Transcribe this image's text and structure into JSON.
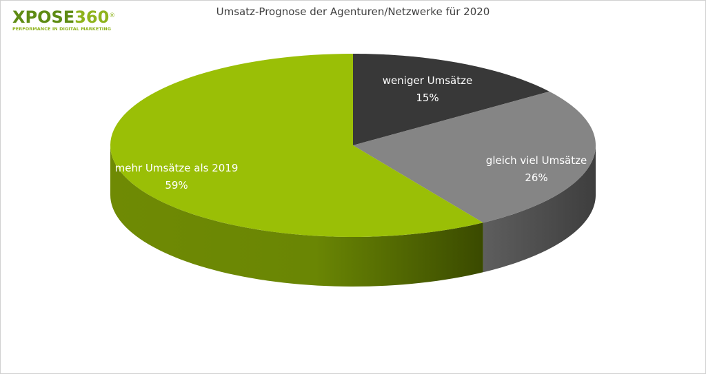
{
  "logo": {
    "brand_letters": "XPOSE",
    "brand_number": "360",
    "registered_mark": "®",
    "tagline": "PERFORMANCE IN DIGITAL MARKETING"
  },
  "colors": {
    "slice_green": "#9abf06",
    "slice_gray": "#858585",
    "slice_dark": "#383838",
    "logo_green": "#5e8b14",
    "title_text": "#404040"
  },
  "chart_data": {
    "type": "pie",
    "title": "Umsatz-Prognose der Agenturen/Netzwerke für 2020",
    "three_d": true,
    "slices": [
      {
        "label": "weniger Umsätze",
        "value": 15,
        "value_label": "15%",
        "color": "#383838",
        "label_color": "#ffffff"
      },
      {
        "label": "gleich viel Umsätze",
        "value": 26,
        "value_label": "26%",
        "color": "#858585",
        "label_color": "#ffffff"
      },
      {
        "label": "mehr Umsätze als 2019",
        "value": 59,
        "value_label": "59%",
        "color": "#9abf06",
        "label_color": "#ffffff"
      }
    ],
    "legend": "none"
  }
}
